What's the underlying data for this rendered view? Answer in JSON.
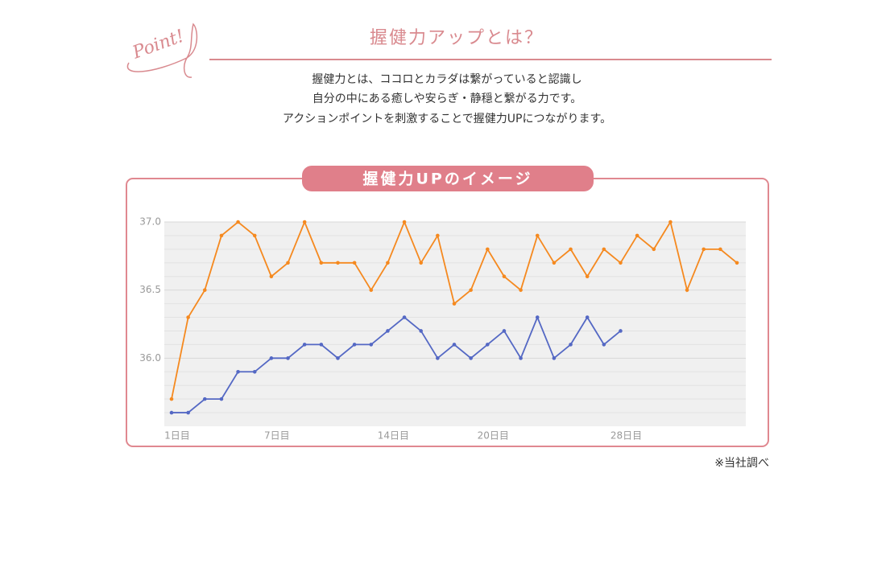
{
  "badge": "Point!",
  "title": "握健力アップとは？",
  "intro": [
    "握健力とは、ココロとカラダは繋がっていると認識し",
    "自分の中にある癒しや安らぎ・静穏と繋がる力です。",
    "アクションポイントを刺激することで握健力UPにつながります。"
  ],
  "source_note": "※当社調べ",
  "chart_data": {
    "type": "line",
    "title": "握健力UPのイメージ",
    "categories": [
      "1日目",
      null,
      null,
      null,
      null,
      null,
      "7日目",
      null,
      null,
      null,
      null,
      null,
      null,
      "14日目",
      null,
      null,
      null,
      null,
      null,
      "20日目",
      null,
      null,
      null,
      null,
      null,
      null,
      null,
      "28日目",
      null,
      null,
      null,
      null,
      null,
      null,
      null
    ],
    "series": [
      {
        "color": "#f5891f",
        "values": [
          35.7,
          36.3,
          36.5,
          36.9,
          37.0,
          36.9,
          36.6,
          36.7,
          37.0,
          36.7,
          36.7,
          36.7,
          36.5,
          36.7,
          37.0,
          36.7,
          36.9,
          36.4,
          36.5,
          36.8,
          36.6,
          36.5,
          36.9,
          36.7,
          36.8,
          36.6,
          36.8,
          36.7,
          36.9,
          36.8,
          37.0,
          36.5,
          36.8,
          36.8,
          36.7
        ]
      },
      {
        "color": "#5468c4",
        "values": [
          35.6,
          35.6,
          35.7,
          35.7,
          35.9,
          35.9,
          36.0,
          36.0,
          36.1,
          36.1,
          36.0,
          36.1,
          36.1,
          36.2,
          36.3,
          36.2,
          36.0,
          36.1,
          36.0,
          36.1,
          36.2,
          36.0,
          36.3,
          36.0,
          36.1,
          36.3,
          36.1,
          36.2,
          null,
          null,
          null,
          null,
          null,
          null,
          null
        ]
      }
    ],
    "ylim": [
      35.5,
      37.0
    ],
    "yticks": [
      {
        "value": 36.0,
        "label": "36.0"
      },
      {
        "value": 36.5,
        "label": "36.5"
      },
      {
        "value": 37.0,
        "label": "37.0"
      }
    ],
    "minor_yticks": [
      35.6,
      35.7,
      35.8,
      35.9,
      36.1,
      36.2,
      36.3,
      36.4,
      36.6,
      36.7,
      36.8,
      36.9
    ],
    "grid": true
  }
}
